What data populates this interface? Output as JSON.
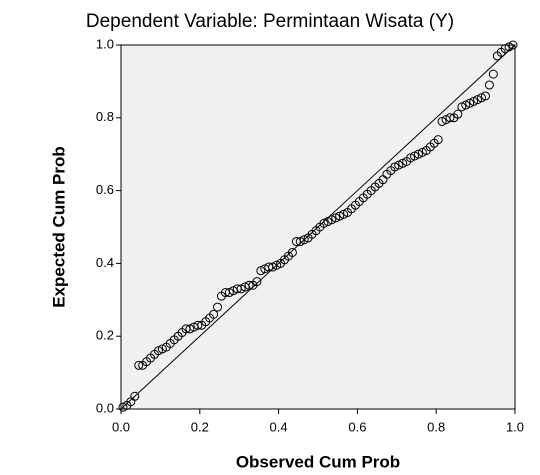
{
  "chart_data": {
    "type": "scatter",
    "title": "Dependent Variable: Permintaan Wisata (Y)",
    "xlabel": "Observed Cum Prob",
    "ylabel": "Expected Cum Prob",
    "xlim": [
      0,
      1
    ],
    "ylim": [
      0,
      1
    ],
    "xticks": [
      {
        "value": 0,
        "label": "0.0"
      },
      0.2,
      0.4,
      0.6,
      0.8,
      {
        "value": 1,
        "label": "1.0"
      }
    ],
    "yticks": [
      {
        "value": 0,
        "label": "0.0"
      },
      0.2,
      0.4,
      0.6,
      0.8,
      {
        "value": 1,
        "label": "1.0"
      }
    ],
    "reference_line": true,
    "series": [
      {
        "color": "#000000",
        "x": [
          0.005,
          0.015,
          0.025,
          0.035,
          0.045,
          0.055,
          0.065,
          0.075,
          0.085,
          0.095,
          0.105,
          0.115,
          0.125,
          0.135,
          0.145,
          0.155,
          0.165,
          0.175,
          0.185,
          0.195,
          0.205,
          0.215,
          0.225,
          0.235,
          0.245,
          0.255,
          0.265,
          0.275,
          0.285,
          0.295,
          0.305,
          0.315,
          0.325,
          0.335,
          0.345,
          0.355,
          0.365,
          0.375,
          0.385,
          0.395,
          0.405,
          0.415,
          0.425,
          0.435,
          0.445,
          0.455,
          0.465,
          0.475,
          0.485,
          0.495,
          0.505,
          0.515,
          0.525,
          0.535,
          0.545,
          0.555,
          0.565,
          0.575,
          0.585,
          0.595,
          0.605,
          0.615,
          0.625,
          0.635,
          0.645,
          0.655,
          0.665,
          0.675,
          0.685,
          0.695,
          0.705,
          0.715,
          0.725,
          0.735,
          0.745,
          0.755,
          0.765,
          0.775,
          0.785,
          0.795,
          0.805,
          0.815,
          0.825,
          0.835,
          0.845,
          0.855,
          0.865,
          0.875,
          0.885,
          0.895,
          0.905,
          0.915,
          0.925,
          0.935,
          0.945,
          0.955,
          0.965,
          0.975,
          0.985,
          0.995
        ],
        "values": [
          0.005,
          0.01,
          0.02,
          0.035,
          0.12,
          0.12,
          0.13,
          0.14,
          0.15,
          0.16,
          0.165,
          0.17,
          0.18,
          0.19,
          0.2,
          0.21,
          0.22,
          0.22,
          0.225,
          0.23,
          0.23,
          0.24,
          0.25,
          0.26,
          0.28,
          0.31,
          0.32,
          0.32,
          0.325,
          0.33,
          0.33,
          0.335,
          0.34,
          0.34,
          0.35,
          0.38,
          0.385,
          0.39,
          0.39,
          0.395,
          0.4,
          0.41,
          0.42,
          0.43,
          0.46,
          0.46,
          0.465,
          0.47,
          0.48,
          0.49,
          0.5,
          0.51,
          0.515,
          0.52,
          0.525,
          0.53,
          0.535,
          0.54,
          0.55,
          0.56,
          0.57,
          0.58,
          0.59,
          0.6,
          0.61,
          0.62,
          0.63,
          0.645,
          0.655,
          0.665,
          0.67,
          0.675,
          0.68,
          0.69,
          0.695,
          0.7,
          0.705,
          0.71,
          0.72,
          0.73,
          0.74,
          0.79,
          0.795,
          0.8,
          0.8,
          0.81,
          0.83,
          0.835,
          0.84,
          0.845,
          0.85,
          0.855,
          0.86,
          0.89,
          0.92,
          0.97,
          0.98,
          0.99,
          0.995,
          1.0
        ]
      }
    ]
  }
}
